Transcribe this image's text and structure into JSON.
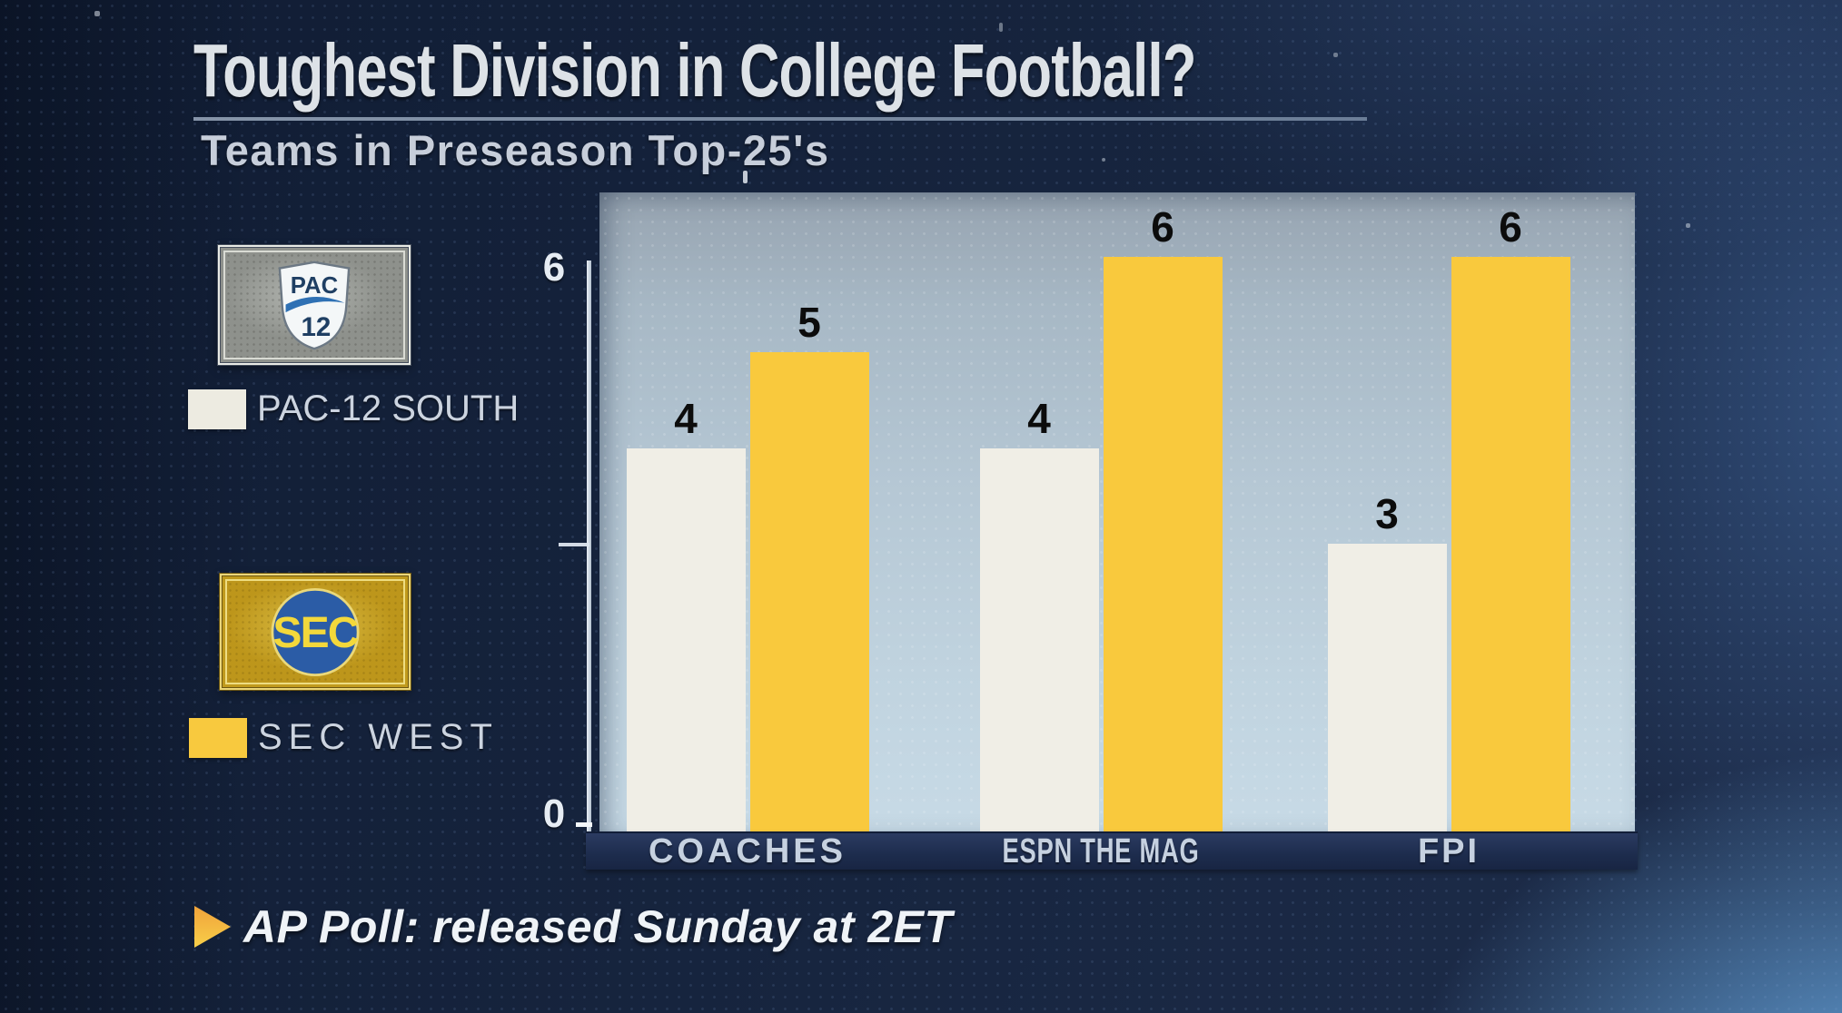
{
  "header": {
    "title": "Toughest Division in College Football?",
    "subtitle": "Teams in Preseason Top-25's"
  },
  "legend": {
    "pac12": {
      "label": "PAC-12 SOUTH",
      "swatch_color": "#edebe1",
      "logo": {
        "line1": "PAC",
        "line2": "12"
      }
    },
    "sec": {
      "label": "SEC WEST",
      "swatch_color": "#f8c93e",
      "logo": {
        "text": "SEC"
      }
    }
  },
  "chart_data": {
    "type": "bar",
    "title": "Teams in Preseason Top-25's",
    "categories": [
      "COACHES",
      "ESPN THE MAG",
      "FPI"
    ],
    "series": [
      {
        "name": "PAC-12 SOUTH",
        "color": "#f0eee6",
        "values": [
          4,
          4,
          3
        ]
      },
      {
        "name": "SEC WEST",
        "color": "#f9c93d",
        "values": [
          5,
          6,
          6
        ]
      }
    ],
    "ylim": [
      0,
      6
    ],
    "yticks": [
      6,
      0
    ],
    "minor_ticks": [
      3
    ],
    "grid": false,
    "legend_position": "left",
    "value_labels": true
  },
  "footer": {
    "note": "AP Poll: released Sunday at 2ET",
    "bullet_color_top": "#f0a23a",
    "bullet_color_bottom": "#f8cf49"
  },
  "colors": {
    "background": "#17253f",
    "panel_top": "#96a3b0",
    "panel_bottom": "#c7dae6",
    "band": "#1d2c4d",
    "bar_white": "#f0eee6",
    "bar_yellow": "#f9c93d",
    "title_text": "#dde2e7"
  }
}
